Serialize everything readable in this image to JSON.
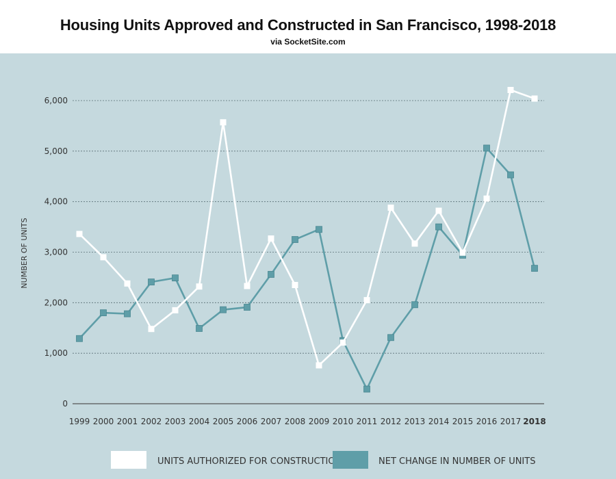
{
  "chart_data": {
    "type": "line",
    "title": "Housing Units Approved and Constructed in San Francisco, 1998-2018",
    "subtitle": "via SocketSite.com",
    "ylabel": "NUMBER OF UNITS",
    "xlabel": "",
    "ylim": [
      0,
      6500
    ],
    "yticks": [
      0,
      1000,
      2000,
      3000,
      4000,
      5000,
      6000
    ],
    "ytick_labels": [
      "0",
      "1,000",
      "2,000",
      "3,000",
      "4,000",
      "5,000",
      "6,000"
    ],
    "grid": "horizontal dotted",
    "legend_position": "bottom",
    "categories": [
      "1999",
      "2000",
      "2001",
      "2002",
      "2003",
      "2004",
      "2005",
      "2006",
      "2007",
      "2008",
      "2009",
      "2010",
      "2011",
      "2012",
      "2013",
      "2014",
      "2015",
      "2016",
      "2017",
      "2018"
    ],
    "series": [
      {
        "name": "UNITS AUTHORIZED FOR CONSTRUCTION",
        "color": "#ffffff",
        "values": [
          3360,
          2900,
          2380,
          1480,
          1850,
          2320,
          5570,
          2330,
          3270,
          2350,
          760,
          1210,
          2050,
          3880,
          3170,
          3820,
          2990,
          4060,
          6210,
          6040
        ]
      },
      {
        "name": "NET CHANGE IN NUMBER OF UNITS",
        "color": "#5f9ea8",
        "values": [
          1290,
          1800,
          1780,
          2410,
          2490,
          1490,
          1860,
          1910,
          2560,
          3250,
          3450,
          1250,
          290,
          1310,
          1960,
          3500,
          2940,
          5060,
          4530,
          2680
        ]
      }
    ],
    "last_category_bold": "2018"
  },
  "colors": {
    "plot_background": "#c5d9de",
    "axis": "#555555",
    "grid": "#5a6f75"
  }
}
